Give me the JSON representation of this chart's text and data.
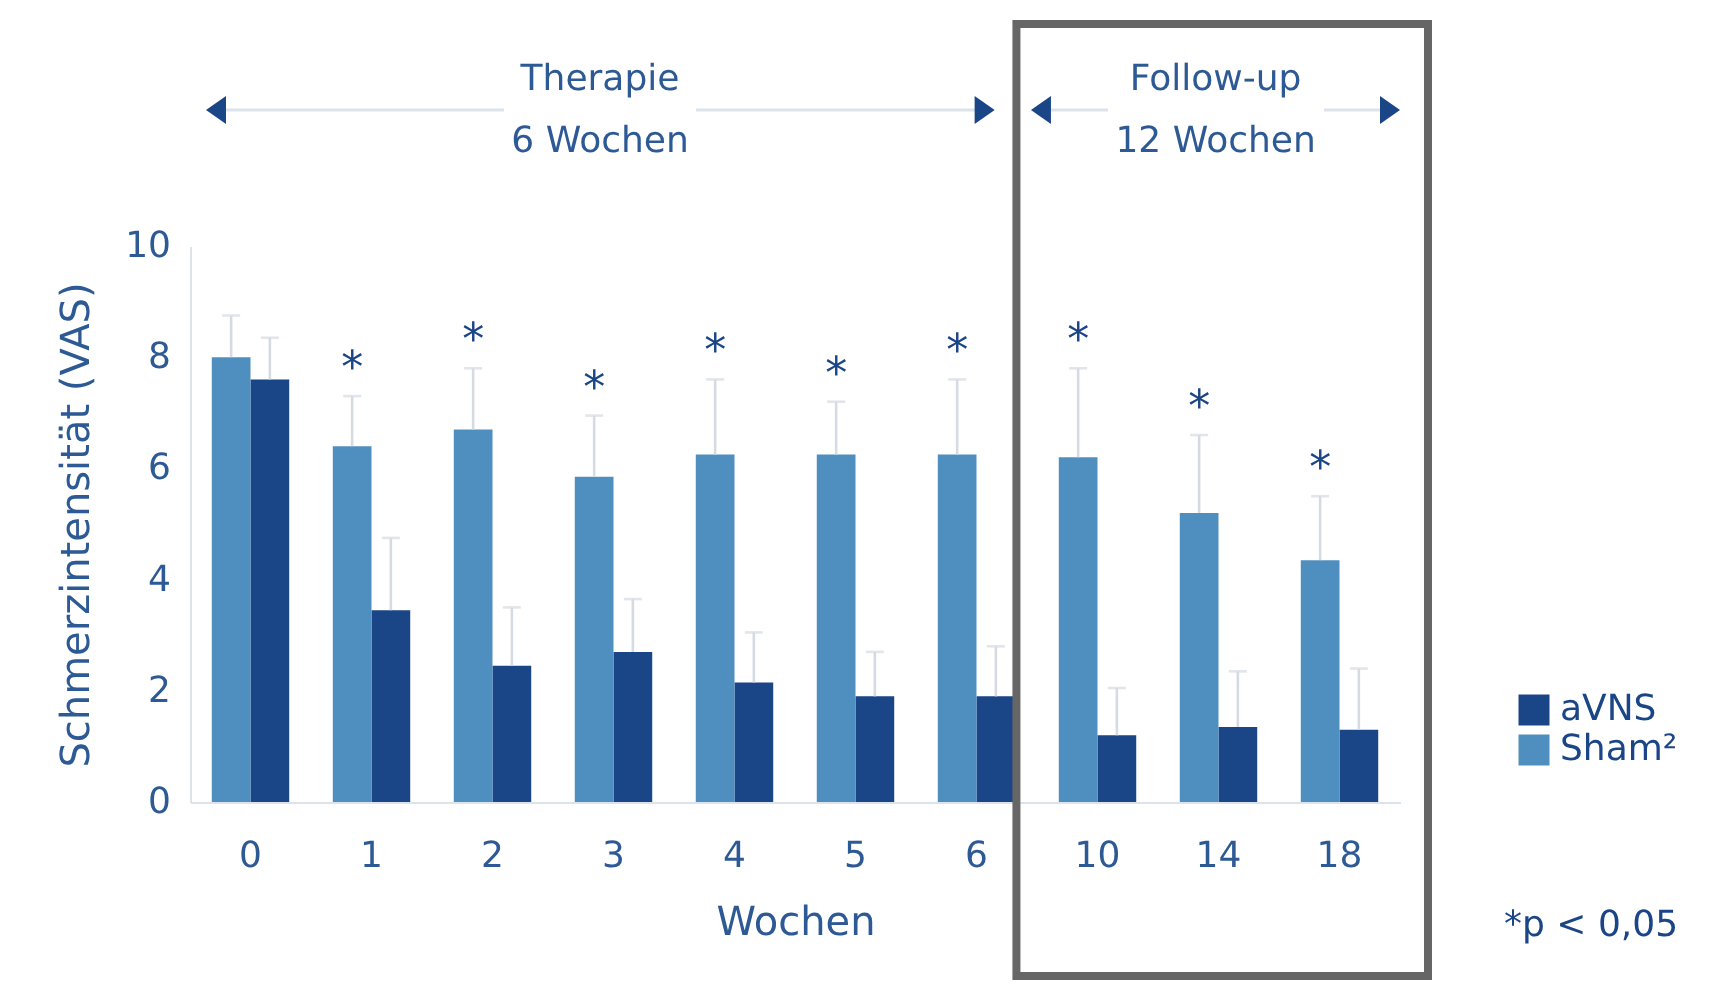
{
  "chart_data": {
    "type": "bar",
    "xlabel": "Wochen",
    "ylabel": "Schmerzintensität (VAS)",
    "categories": [
      "0",
      "1",
      "2",
      "3",
      "4",
      "5",
      "6",
      "10",
      "14",
      "18"
    ],
    "series": [
      {
        "name": "aVNS",
        "color": "#1a4586",
        "values": [
          7.6,
          3.45,
          2.45,
          2.7,
          2.15,
          1.9,
          1.9,
          1.2,
          1.35,
          1.3
        ],
        "errors": [
          [
            7.6,
            8.35
          ],
          [
            3.45,
            4.75
          ],
          [
            2.45,
            3.5
          ],
          [
            2.7,
            3.65
          ],
          [
            2.15,
            3.05
          ],
          [
            1.9,
            2.7
          ],
          [
            1.9,
            2.8
          ],
          [
            1.2,
            2.05
          ],
          [
            1.35,
            2.35
          ],
          [
            1.3,
            2.4
          ]
        ]
      },
      {
        "name": "Sham²",
        "color": "#4f8fbf",
        "values": [
          8.0,
          6.4,
          6.7,
          5.85,
          6.25,
          6.25,
          6.25,
          6.2,
          5.2,
          4.35
        ],
        "errors": [
          [
            8.0,
            8.75
          ],
          [
            6.4,
            7.3
          ],
          [
            6.7,
            7.8
          ],
          [
            5.85,
            6.95
          ],
          [
            6.25,
            7.6
          ],
          [
            6.25,
            7.2
          ],
          [
            6.25,
            7.6
          ],
          [
            6.2,
            7.8
          ],
          [
            5.2,
            6.6
          ],
          [
            4.35,
            5.5
          ]
        ]
      }
    ],
    "ylim": [
      0,
      10
    ],
    "yticks": [
      0,
      2,
      4,
      6,
      8,
      10
    ],
    "legend": "right",
    "annotations": [
      "*",
      "*",
      "*",
      "*",
      "*",
      "*",
      "*",
      "*",
      "*",
      "Therapie 6 Wochen",
      "Follow-up 12 Wochen",
      "*p < 0,05"
    ]
  }
}
